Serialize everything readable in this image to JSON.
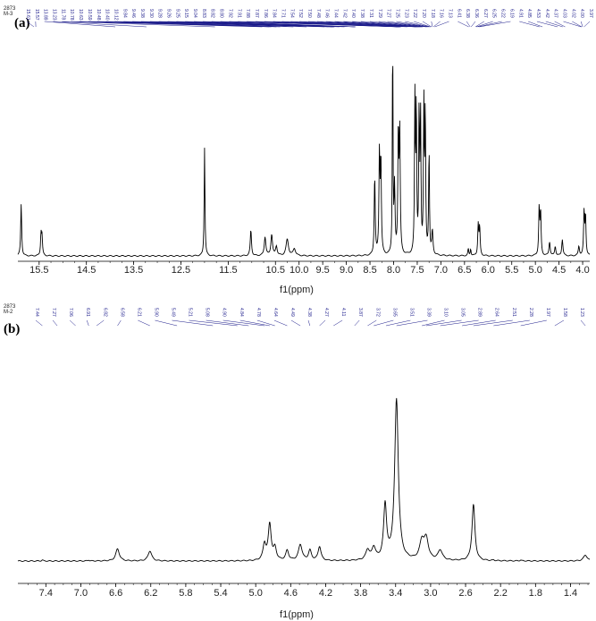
{
  "chart_data": [
    {
      "type": "line",
      "panel_label": "(a)",
      "sample_label": "2873\nM-3",
      "xlabel": "f1(ppm)",
      "xlim": [
        15.95,
        3.85
      ],
      "x_reversed": true,
      "ylim": [
        0,
        1.0
      ],
      "ticks": [
        "15.5",
        "14.5",
        "13.5",
        "12.5",
        "11.5",
        "10.5",
        "10.0",
        "9.5",
        "9.0",
        "8.5",
        "8.0",
        "7.5",
        "7.0",
        "6.5",
        "6.0",
        "5.5",
        "5.0",
        "4.5",
        "4.0"
      ],
      "tick_values": [
        15.5,
        14.5,
        13.5,
        12.5,
        11.5,
        10.5,
        10.0,
        9.5,
        9.0,
        8.5,
        8.0,
        7.5,
        7.0,
        6.5,
        6.0,
        5.5,
        5.0,
        4.5,
        4.0
      ],
      "peaks": [
        {
          "ppm": 15.88,
          "height": 0.22,
          "width": 0.012
        },
        {
          "ppm": 15.46,
          "height": 0.09,
          "width": 0.012
        },
        {
          "ppm": 15.44,
          "height": 0.08,
          "width": 0.012
        },
        {
          "ppm": 12.0,
          "height": 0.46,
          "width": 0.01
        },
        {
          "ppm": 11.02,
          "height": 0.11,
          "width": 0.015
        },
        {
          "ppm": 10.72,
          "height": 0.08,
          "width": 0.02
        },
        {
          "ppm": 10.58,
          "height": 0.09,
          "width": 0.02
        },
        {
          "ppm": 10.48,
          "height": 0.04,
          "width": 0.02
        },
        {
          "ppm": 10.25,
          "height": 0.07,
          "width": 0.03
        },
        {
          "ppm": 10.1,
          "height": 0.03,
          "width": 0.03
        },
        {
          "ppm": 8.4,
          "height": 0.34,
          "width": 0.012
        },
        {
          "ppm": 8.3,
          "height": 0.42,
          "width": 0.012
        },
        {
          "ppm": 8.27,
          "height": 0.4,
          "width": 0.012
        },
        {
          "ppm": 8.02,
          "height": 0.97,
          "width": 0.008
        },
        {
          "ppm": 7.98,
          "height": 0.28,
          "width": 0.012
        },
        {
          "ppm": 7.9,
          "height": 0.52,
          "width": 0.012
        },
        {
          "ppm": 7.87,
          "height": 0.5,
          "width": 0.012
        },
        {
          "ppm": 7.55,
          "height": 0.65,
          "width": 0.01
        },
        {
          "ppm": 7.52,
          "height": 0.63,
          "width": 0.01
        },
        {
          "ppm": 7.46,
          "height": 0.6,
          "width": 0.01
        },
        {
          "ppm": 7.43,
          "height": 0.58,
          "width": 0.01
        },
        {
          "ppm": 7.36,
          "height": 0.62,
          "width": 0.01
        },
        {
          "ppm": 7.33,
          "height": 0.6,
          "width": 0.01
        },
        {
          "ppm": 7.25,
          "height": 0.45,
          "width": 0.01
        },
        {
          "ppm": 7.18,
          "height": 0.1,
          "width": 0.015
        },
        {
          "ppm": 6.42,
          "height": 0.03,
          "width": 0.01
        },
        {
          "ppm": 6.37,
          "height": 0.03,
          "width": 0.01
        },
        {
          "ppm": 6.21,
          "height": 0.13,
          "width": 0.012
        },
        {
          "ppm": 6.18,
          "height": 0.12,
          "width": 0.012
        },
        {
          "ppm": 4.92,
          "height": 0.2,
          "width": 0.012
        },
        {
          "ppm": 4.89,
          "height": 0.18,
          "width": 0.012
        },
        {
          "ppm": 4.7,
          "height": 0.06,
          "width": 0.015
        },
        {
          "ppm": 4.58,
          "height": 0.04,
          "width": 0.015
        },
        {
          "ppm": 4.43,
          "height": 0.07,
          "width": 0.015
        },
        {
          "ppm": 4.08,
          "height": 0.04,
          "width": 0.015
        },
        {
          "ppm": 3.97,
          "height": 0.18,
          "width": 0.012
        },
        {
          "ppm": 3.94,
          "height": 0.17,
          "width": 0.012
        }
      ],
      "peak_labels": [
        "15.61",
        "15.57",
        "13.89",
        "13.23",
        "11.78",
        "10.78",
        "10.63",
        "10.59",
        "10.48",
        "10.40",
        "10.12",
        "9.84",
        "9.46",
        "9.38",
        "9.30",
        "9.28",
        "9.26",
        "9.25",
        "9.15",
        "9.04",
        "8.83",
        "8.82",
        "8.80",
        "7.92",
        "7.91",
        "7.88",
        "7.87",
        "7.86",
        "7.84",
        "7.71",
        "7.54",
        "7.52",
        "7.50",
        "7.48",
        "7.46",
        "7.44",
        "7.42",
        "7.40",
        "7.38",
        "7.31",
        "7.29",
        "7.27",
        "7.25",
        "7.23",
        "7.22",
        "7.20",
        "7.18",
        "7.16",
        "7.13",
        "6.41",
        "6.38",
        "6.36",
        "6.27",
        "6.25",
        "6.22",
        "6.19",
        "4.91",
        "4.85",
        "4.53",
        "4.42",
        "4.37",
        "4.03",
        "4.02",
        "4.00",
        "3.97"
      ]
    },
    {
      "type": "line",
      "panel_label": "(b)",
      "sample_label": "2873\nM-2",
      "xlabel": "f1(ppm)",
      "xlim": [
        7.72,
        1.18
      ],
      "x_reversed": true,
      "ylim": [
        0,
        1.0
      ],
      "ticks": [
        "7.4",
        "7.0",
        "6.6",
        "6.2",
        "5.8",
        "5.4",
        "5.0",
        "4.6",
        "4.2",
        "3.8",
        "3.4",
        "3.0",
        "2.6",
        "2.2",
        "1.8",
        "1.4"
      ],
      "tick_values": [
        7.4,
        7.0,
        6.6,
        6.2,
        5.8,
        5.4,
        5.0,
        4.6,
        4.2,
        3.8,
        3.4,
        3.0,
        2.6,
        2.2,
        1.8,
        1.4
      ],
      "peaks": [
        {
          "ppm": 7.44,
          "height": 0.005,
          "width": 0.01
        },
        {
          "ppm": 6.91,
          "height": 0.005,
          "width": 0.01
        },
        {
          "ppm": 6.58,
          "height": 0.06,
          "width": 0.025
        },
        {
          "ppm": 6.21,
          "height": 0.05,
          "width": 0.025
        },
        {
          "ppm": 4.9,
          "height": 0.08,
          "width": 0.02
        },
        {
          "ppm": 4.84,
          "height": 0.18,
          "width": 0.02
        },
        {
          "ppm": 4.78,
          "height": 0.06,
          "width": 0.02
        },
        {
          "ppm": 4.64,
          "height": 0.05,
          "width": 0.02
        },
        {
          "ppm": 4.49,
          "height": 0.08,
          "width": 0.025
        },
        {
          "ppm": 4.38,
          "height": 0.05,
          "width": 0.02
        },
        {
          "ppm": 4.27,
          "height": 0.07,
          "width": 0.02
        },
        {
          "ppm": 3.72,
          "height": 0.05,
          "width": 0.025
        },
        {
          "ppm": 3.65,
          "height": 0.06,
          "width": 0.025
        },
        {
          "ppm": 3.52,
          "height": 0.27,
          "width": 0.02
        },
        {
          "ppm": 3.39,
          "height": 0.8,
          "width": 0.025
        },
        {
          "ppm": 3.1,
          "height": 0.09,
          "width": 0.03
        },
        {
          "ppm": 3.05,
          "height": 0.1,
          "width": 0.03
        },
        {
          "ppm": 2.89,
          "height": 0.05,
          "width": 0.03
        },
        {
          "ppm": 2.51,
          "height": 0.28,
          "width": 0.02
        },
        {
          "ppm": 2.28,
          "height": 0.004,
          "width": 0.01
        },
        {
          "ppm": 1.97,
          "height": 0.004,
          "width": 0.01
        },
        {
          "ppm": 1.23,
          "height": 0.03,
          "width": 0.025
        }
      ],
      "peak_labels": [
        "7.44",
        "7.27",
        "7.06",
        "6.91",
        "6.82",
        "6.58",
        "6.21",
        "5.90",
        "5.49",
        "5.21",
        "5.08",
        "4.90",
        "4.84",
        "4.78",
        "4.64",
        "4.49",
        "4.38",
        "4.27",
        "4.11",
        "3.87",
        "3.72",
        "3.65",
        "3.51",
        "3.39",
        "3.10",
        "3.05",
        "2.89",
        "2.64",
        "2.51",
        "2.28",
        "1.97",
        "1.58",
        "1.23"
      ]
    }
  ],
  "colors": {
    "spectrum": "#000000",
    "peak_label": "#1a1a8a",
    "axis": "#000000"
  }
}
